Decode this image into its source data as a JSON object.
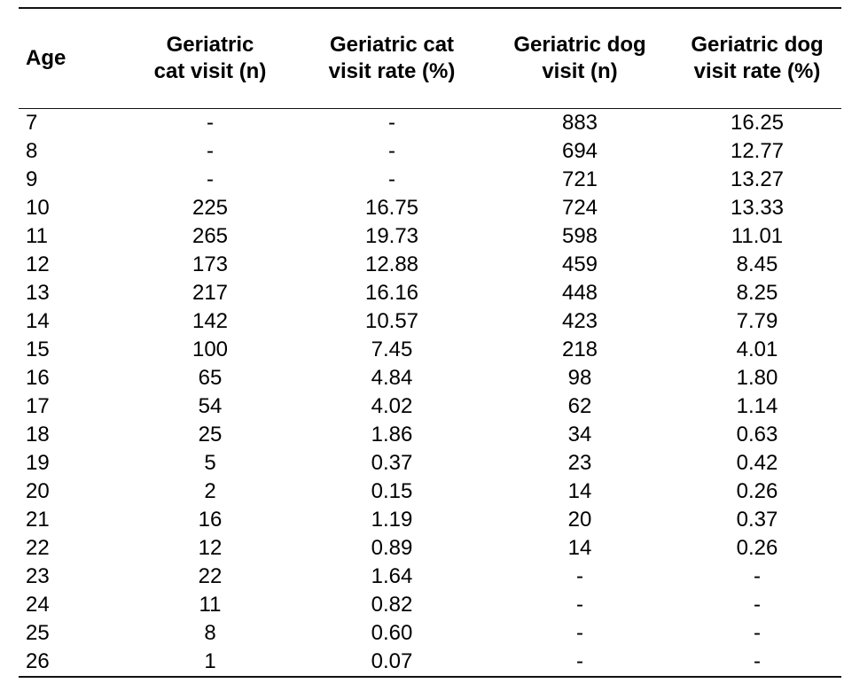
{
  "table": {
    "headers": [
      "Age",
      "Geriatric cat visit (n)",
      "Geriatric cat visit rate (%)",
      "Geriatric dog visit (n)",
      "Geriatric dog visit rate (%)"
    ],
    "header_lines": [
      [
        "Age"
      ],
      [
        "Geriatric",
        "cat visit (n)"
      ],
      [
        "Geriatric cat",
        "visit rate (%)"
      ],
      [
        "Geriatric dog",
        "visit (n)"
      ],
      [
        "Geriatric dog",
        "visit rate (%)"
      ]
    ],
    "rows": [
      [
        "7",
        "-",
        "-",
        "883",
        "16.25"
      ],
      [
        "8",
        "-",
        "-",
        "694",
        "12.77"
      ],
      [
        "9",
        "-",
        "-",
        "721",
        "13.27"
      ],
      [
        "10",
        "225",
        "16.75",
        "724",
        "13.33"
      ],
      [
        "11",
        "265",
        "19.73",
        "598",
        "11.01"
      ],
      [
        "12",
        "173",
        "12.88",
        "459",
        "8.45"
      ],
      [
        "13",
        "217",
        "16.16",
        "448",
        "8.25"
      ],
      [
        "14",
        "142",
        "10.57",
        "423",
        "7.79"
      ],
      [
        "15",
        "100",
        "7.45",
        "218",
        "4.01"
      ],
      [
        "16",
        "65",
        "4.84",
        "98",
        "1.80"
      ],
      [
        "17",
        "54",
        "4.02",
        "62",
        "1.14"
      ],
      [
        "18",
        "25",
        "1.86",
        "34",
        "0.63"
      ],
      [
        "19",
        "5",
        "0.37",
        "23",
        "0.42"
      ],
      [
        "20",
        "2",
        "0.15",
        "14",
        "0.26"
      ],
      [
        "21",
        "16",
        "1.19",
        "20",
        "0.37"
      ],
      [
        "22",
        "12",
        "0.89",
        "14",
        "0.26"
      ],
      [
        "23",
        "22",
        "1.64",
        "-",
        "-"
      ],
      [
        "24",
        "11",
        "0.82",
        "-",
        "-"
      ],
      [
        "25",
        "8",
        "0.60",
        "-",
        "-"
      ],
      [
        "26",
        "1",
        "0.07",
        "-",
        "-"
      ]
    ]
  }
}
